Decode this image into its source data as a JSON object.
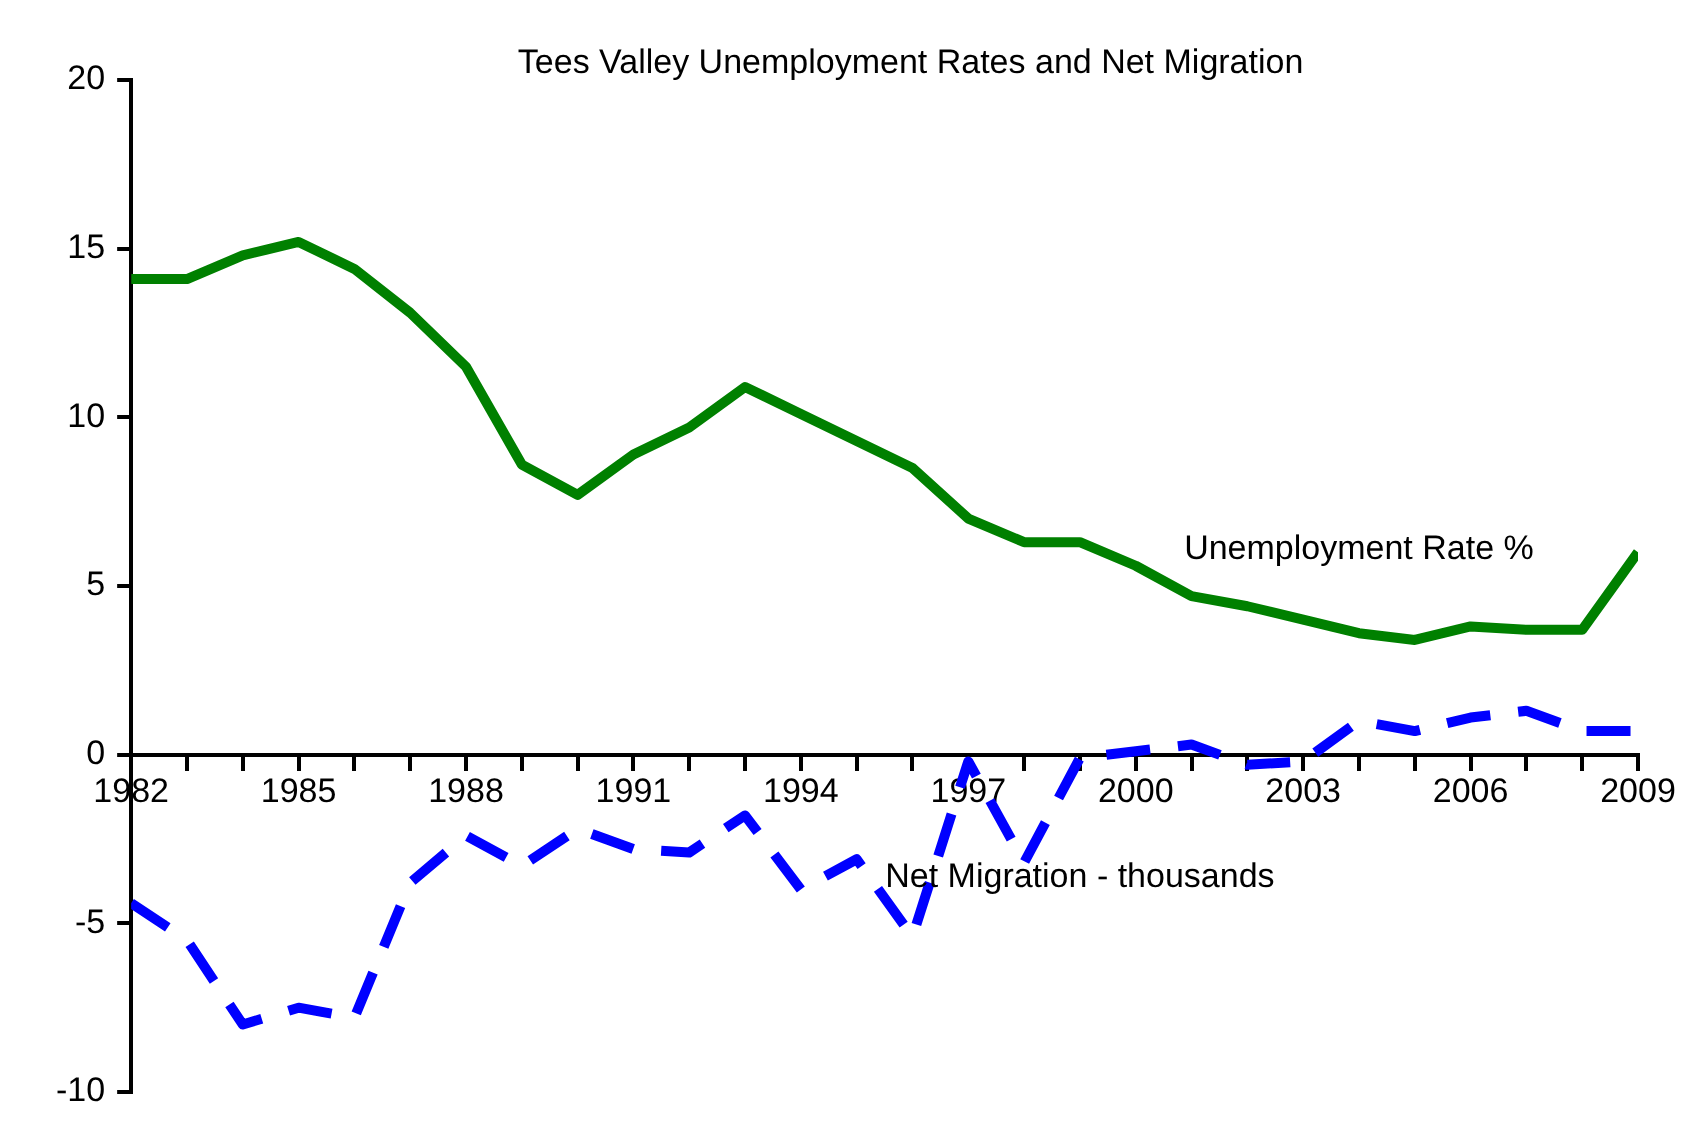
{
  "chart_data": {
    "type": "line",
    "title": "Tees Valley Unemployment Rates and Net Migration",
    "x": [
      1982,
      1983,
      1984,
      1985,
      1986,
      1987,
      1988,
      1989,
      1990,
      1991,
      1992,
      1993,
      1994,
      1995,
      1996,
      1997,
      1998,
      1999,
      2000,
      2001,
      2002,
      2003,
      2004,
      2005,
      2006,
      2007,
      2008,
      2009
    ],
    "series": [
      {
        "name": "Unemployment Rate %",
        "color": "#008000",
        "line_style": "solid",
        "values": [
          14.1,
          14.1,
          14.8,
          15.2,
          14.4,
          13.1,
          11.5,
          8.6,
          7.7,
          8.9,
          9.7,
          10.9,
          10.1,
          9.3,
          8.5,
          7.0,
          6.3,
          6.3,
          5.6,
          4.7,
          4.4,
          4.0,
          3.6,
          3.4,
          3.8,
          3.7,
          3.7,
          6.0
        ]
      },
      {
        "name": "Net Migration - thousands",
        "color": "#0000ff",
        "line_style": "dashed",
        "values": [
          -4.4,
          -5.5,
          -8.0,
          -7.5,
          -7.8,
          -3.8,
          -2.4,
          -3.3,
          -2.2,
          -2.8,
          -2.9,
          -1.8,
          -4.0,
          -3.1,
          -5.4,
          -0.2,
          -3.2,
          -0.1,
          0.1,
          0.3,
          -0.3,
          -0.2,
          1.0,
          0.7,
          1.1,
          1.3,
          0.7,
          0.7
        ]
      }
    ],
    "xlim": [
      1982,
      2009
    ],
    "xticks": [
      1982,
      {
        "value": 1983,
        "label": null
      },
      {
        "value": 1984,
        "label": null
      },
      1985,
      {
        "value": 1986,
        "label": null
      },
      {
        "value": 1987,
        "label": null
      },
      1988,
      {
        "value": 1989,
        "label": null
      },
      {
        "value": 1990,
        "label": null
      },
      1991,
      {
        "value": 1992,
        "label": null
      },
      {
        "value": 1993,
        "label": null
      },
      1994,
      {
        "value": 1995,
        "label": null
      },
      {
        "value": 1996,
        "label": null
      },
      1997,
      {
        "value": 1998,
        "label": null
      },
      {
        "value": 1999,
        "label": null
      },
      2000,
      {
        "value": 2001,
        "label": null
      },
      {
        "value": 2002,
        "label": null
      },
      2003,
      {
        "value": 2004,
        "label": null
      },
      {
        "value": 2005,
        "label": null
      },
      2006,
      {
        "value": 2007,
        "label": null
      },
      {
        "value": 2008,
        "label": null
      },
      2009
    ],
    "ylim": [
      -10,
      20
    ],
    "yticks": [
      -10,
      -5,
      0,
      5,
      10,
      15,
      20
    ],
    "grid": false,
    "legend": false,
    "marker": "none"
  }
}
